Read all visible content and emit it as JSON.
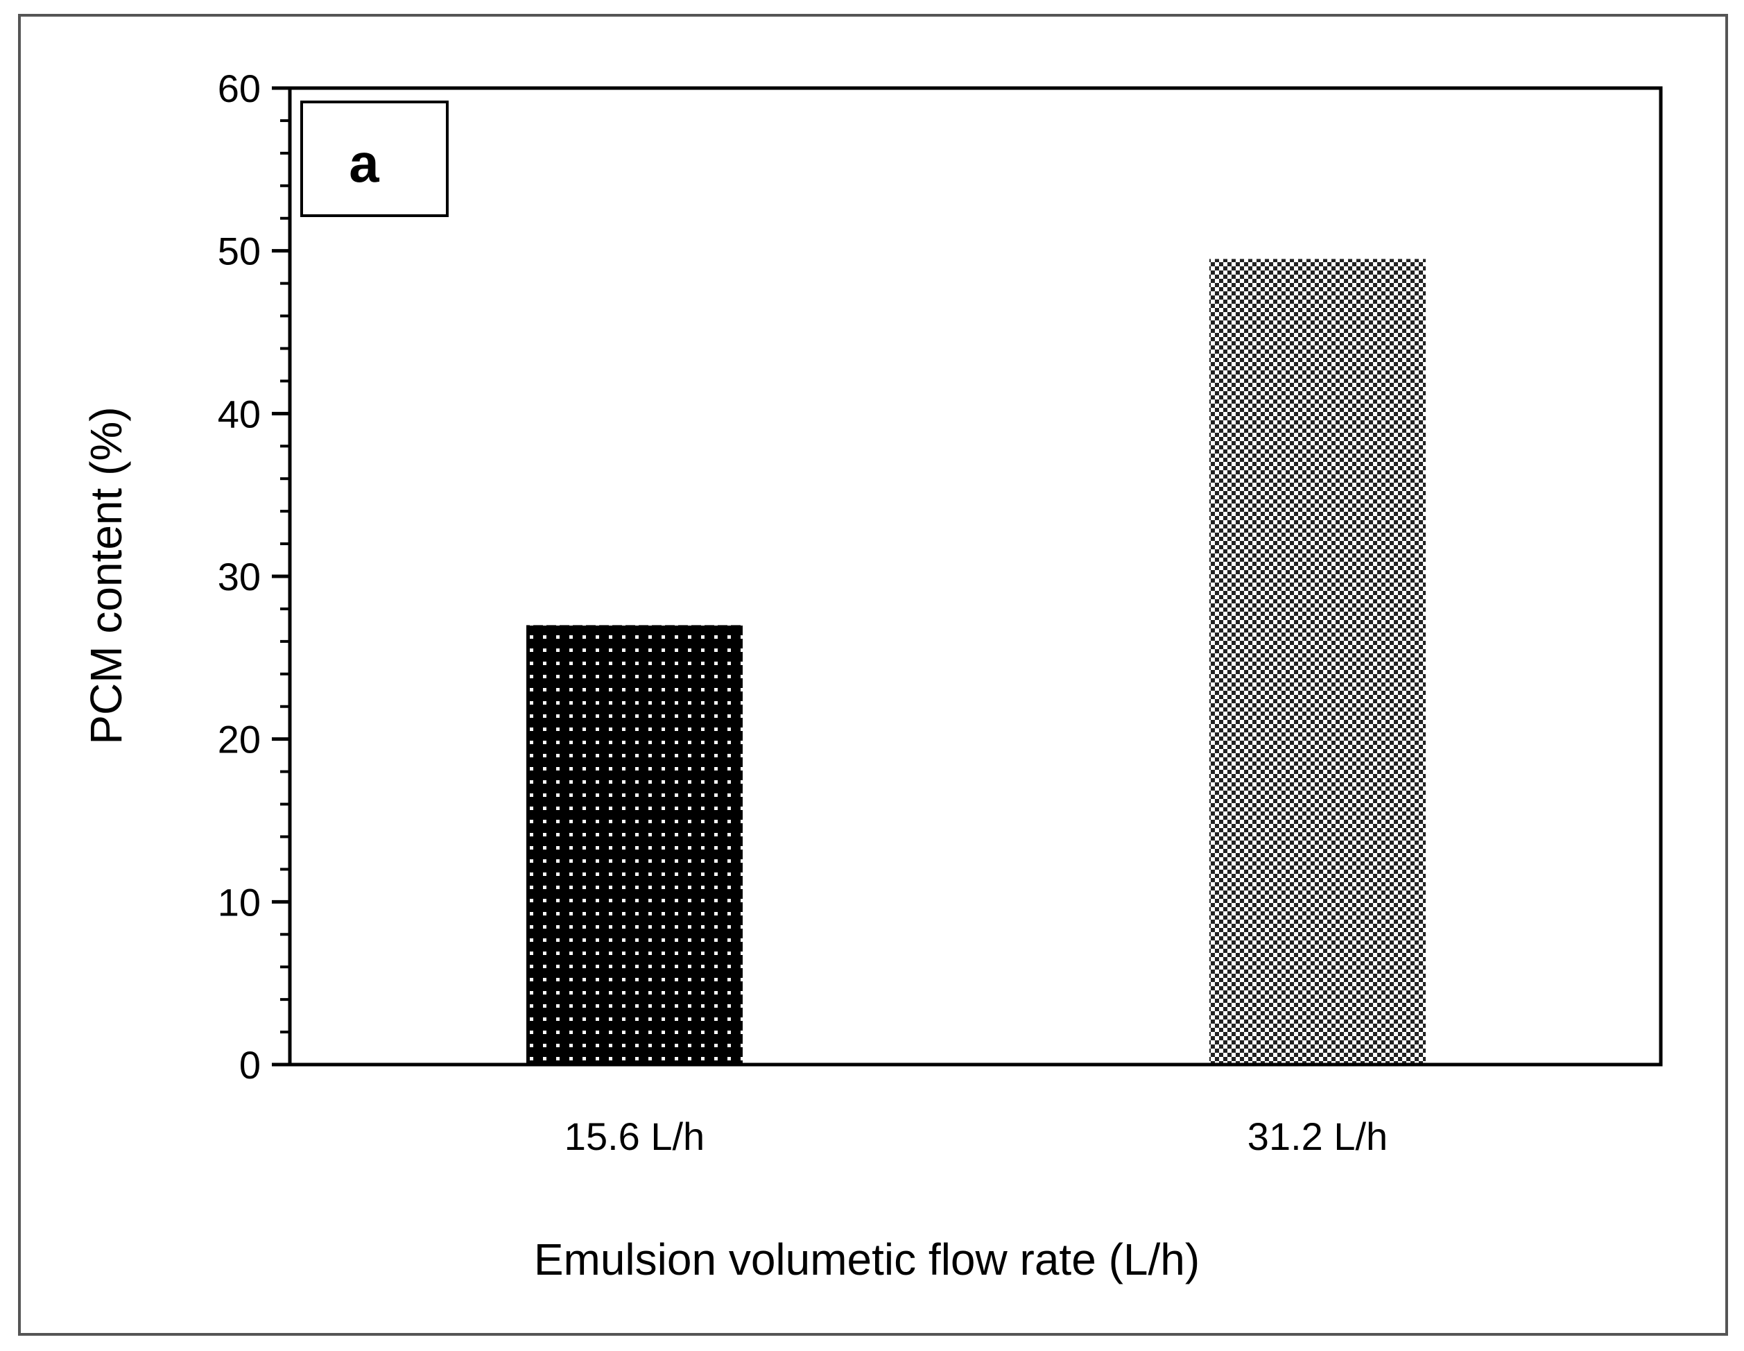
{
  "chart_data": {
    "type": "bar",
    "panel_label": "a",
    "categories": [
      "15.6 L/h",
      "31.2 L/h"
    ],
    "values": [
      27,
      49.5
    ],
    "series": [
      {
        "name": "PCM content",
        "values": [
          27,
          49.5
        ]
      }
    ],
    "bar_patterns": [
      "dots-on-black",
      "checker-fine"
    ],
    "xlabel": "Emulsion volumetic flow rate (L/h)",
    "ylabel": "PCM content (%)",
    "ylim": [
      0,
      60
    ],
    "yticks": [
      0,
      10,
      20,
      30,
      40,
      50,
      60
    ],
    "ytick_labels": [
      "0",
      "10",
      "20",
      "30",
      "40",
      "50",
      "60"
    ],
    "minor_ticks_per_major": 5,
    "grid": false,
    "legend": "none"
  },
  "colors": {
    "axis": "#000000",
    "frame": "#555555",
    "bar1_fill": "#000000",
    "bar1_dots": "#ffffff",
    "bar2_dark": "#222222",
    "bar2_light": "#ffffff"
  }
}
